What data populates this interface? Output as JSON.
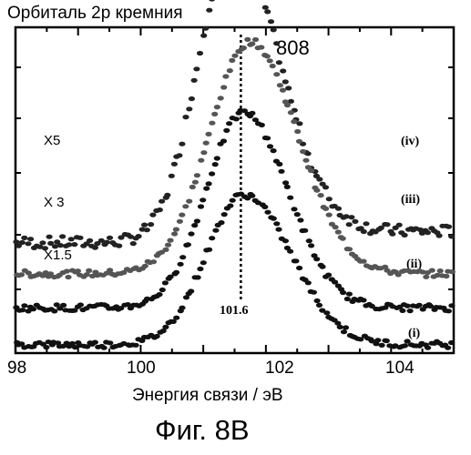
{
  "chart_data": {
    "type": "scatter",
    "title": "Орбиталь 2р кремния",
    "xlabel": "Энергия связи / эВ",
    "ylabel": "",
    "figure_label": "Фиг. 8В",
    "peak_label": "808",
    "xlim": [
      98,
      105
    ],
    "x_ticks": [
      "98",
      "100",
      "102",
      "104"
    ],
    "x_tick_values": [
      98,
      100,
      102,
      104
    ],
    "marker_line": {
      "x": 101.6,
      "label": "101.6"
    },
    "series": [
      {
        "name": "(iv)",
        "multiplier": "X5",
        "peak_x": 101.45,
        "baseline_left": 1.8,
        "baseline_right": 2.0,
        "peak_height": 5.15,
        "width_left": 0.55,
        "width_right": 0.75,
        "color": "#222222"
      },
      {
        "name": "(iii)",
        "multiplier": "X 3",
        "peak_x": 101.75,
        "baseline_left": 1.25,
        "baseline_right": 1.25,
        "peak_height": 4.1,
        "width_left": 0.65,
        "width_right": 0.75,
        "color": "#555555"
      },
      {
        "name": "(ii)",
        "multiplier": "X1.5",
        "peak_x": 101.65,
        "baseline_left": 0.65,
        "baseline_right": 0.65,
        "peak_height": 3.45,
        "width_left": 0.6,
        "width_right": 0.7,
        "color": "#111111"
      },
      {
        "name": "(i)",
        "multiplier": "",
        "peak_x": 101.65,
        "baseline_left": 0.0,
        "baseline_right": 0.0,
        "peak_height": 2.65,
        "width_left": 0.6,
        "width_right": 0.75,
        "color": "#111111"
      }
    ],
    "grid": false
  }
}
